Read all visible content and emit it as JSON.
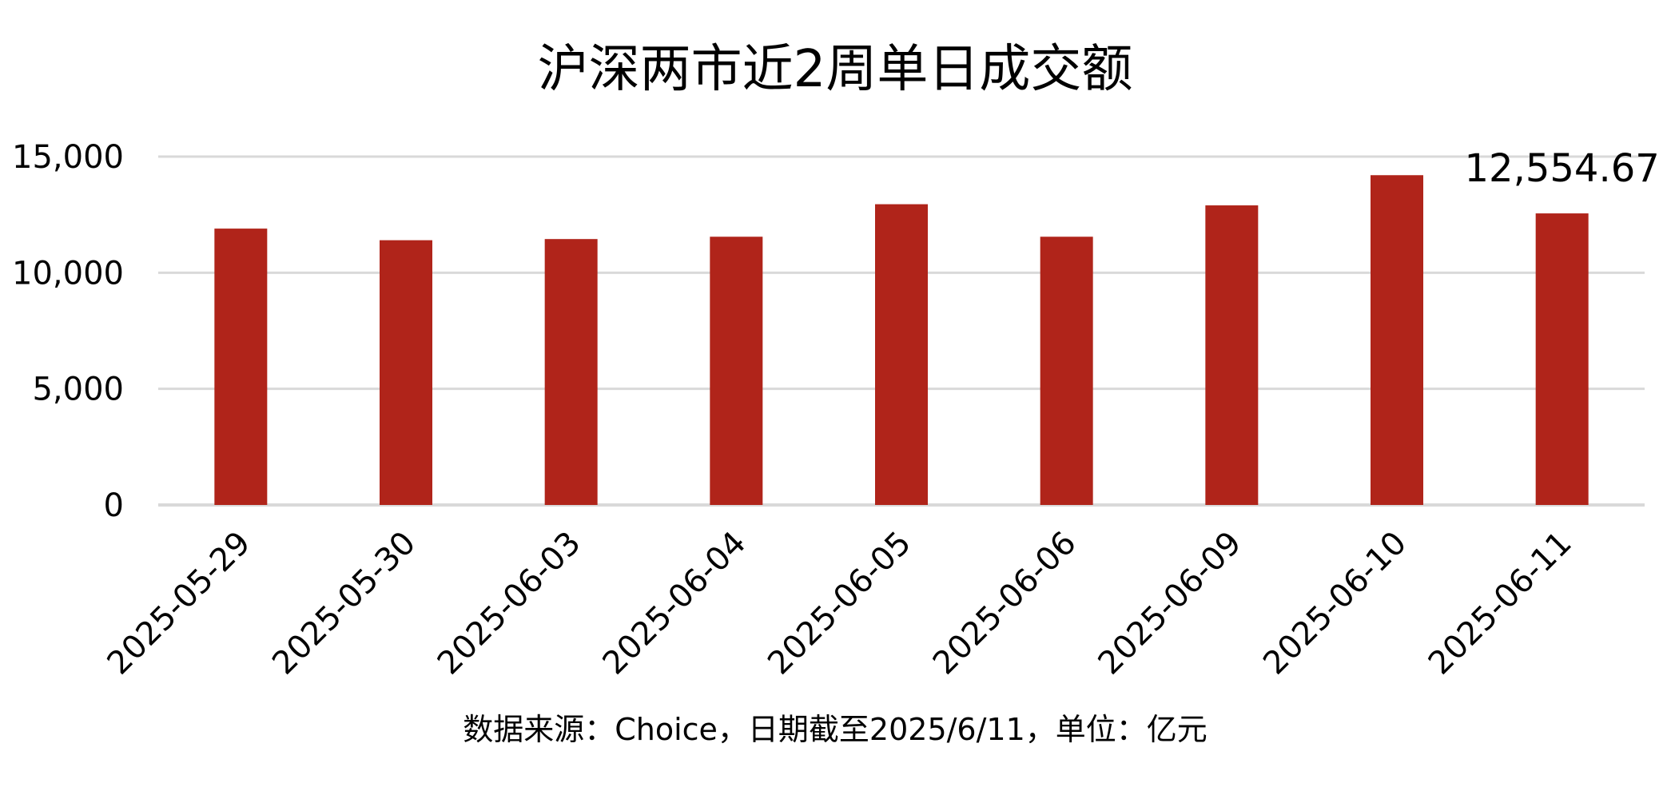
{
  "chart_data": {
    "type": "bar",
    "title": "沪深两市近2周单日成交额",
    "xlabel": "",
    "ylabel": "",
    "categories": [
      "2025-05-29",
      "2025-05-30",
      "2025-06-03",
      "2025-06-04",
      "2025-06-05",
      "2025-06-06",
      "2025-06-09",
      "2025-06-10",
      "2025-06-11"
    ],
    "values": [
      11900,
      11400,
      11450,
      11550,
      12950,
      11550,
      12900,
      14200,
      12554.67
    ],
    "ylim": [
      0,
      15000
    ],
    "yticks": [
      0,
      5000,
      10000,
      15000
    ],
    "ytick_labels": [
      "0",
      "5,000",
      "10,000",
      "15,000"
    ],
    "data_labels": [
      {
        "category": "2025-06-11",
        "text": "12,554.67"
      }
    ],
    "grid": true,
    "legend": "none",
    "bar_color": "#b0241a",
    "gridline_color": "#d9d9d9",
    "note": "数据来源：Choice，日期截至2025/6/11，单位：亿元"
  }
}
